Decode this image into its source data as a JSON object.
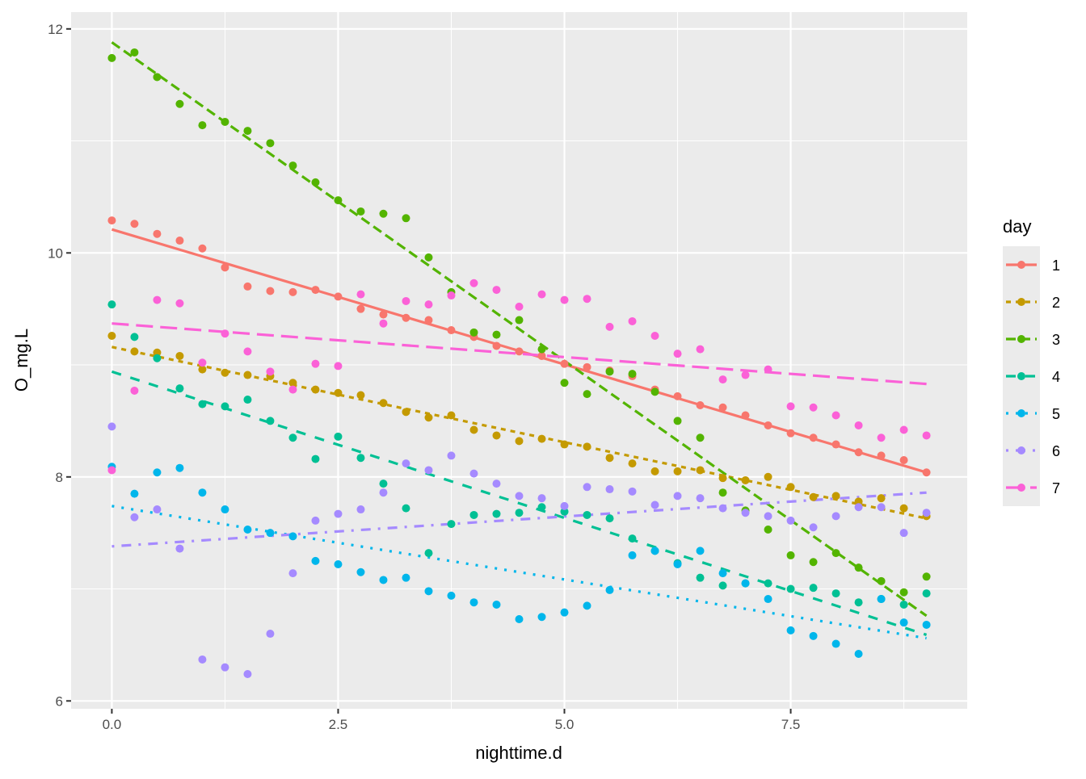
{
  "chart_data": {
    "type": "scatter",
    "xlabel": "nighttime.d",
    "ylabel": "O_mg.L",
    "xlim": [
      -0.45,
      9.45
    ],
    "ylim": [
      5.93,
      12.15
    ],
    "xticks": [
      0,
      2.5,
      5,
      7.5
    ],
    "xtick_labels": [
      "0.0",
      "2.5",
      "5.0",
      "7.5"
    ],
    "yticks": [
      6,
      8,
      10,
      12
    ],
    "ytick_labels": [
      "6",
      "8",
      "10",
      "12"
    ],
    "grid": true,
    "legend": {
      "title": "day",
      "position": "right"
    },
    "x": [
      0,
      0.25,
      0.5,
      0.75,
      1,
      1.25,
      1.5,
      1.75,
      2,
      2.25,
      2.5,
      2.75,
      3,
      3.25,
      3.5,
      3.75,
      4,
      4.25,
      4.5,
      4.75,
      5,
      5.25,
      5.5,
      5.75,
      6,
      6.25,
      6.5,
      6.75,
      7,
      7.25,
      7.5,
      7.75,
      8,
      8.25,
      8.5,
      8.75,
      9
    ],
    "series": [
      {
        "name": "1",
        "color": "#F8766D",
        "linetype": "solid",
        "fit": [
          10.21,
          8.04
        ],
        "values": [
          10.29,
          10.26,
          10.17,
          10.11,
          10.04,
          9.87,
          9.7,
          9.66,
          9.65,
          9.67,
          9.61,
          9.5,
          9.45,
          9.42,
          9.4,
          9.31,
          9.25,
          9.17,
          9.12,
          9.08,
          9.01,
          8.98,
          8.95,
          8.9,
          8.78,
          8.72,
          8.64,
          8.62,
          8.55,
          8.46,
          8.39,
          8.35,
          8.29,
          8.22,
          8.19,
          8.15,
          8.04
        ]
      },
      {
        "name": "2",
        "color": "#C49A00",
        "linetype": "22",
        "fit": [
          9.16,
          7.63
        ],
        "values": [
          9.26,
          9.12,
          9.11,
          9.08,
          8.96,
          8.93,
          8.91,
          8.9,
          8.84,
          8.78,
          8.75,
          8.73,
          8.66,
          8.58,
          8.53,
          8.55,
          8.42,
          8.37,
          8.32,
          8.34,
          8.29,
          8.27,
          8.17,
          8.12,
          8.05,
          8.05,
          8.06,
          7.99,
          7.97,
          8.0,
          7.91,
          7.82,
          7.83,
          7.78,
          7.81,
          7.72,
          7.65
        ]
      },
      {
        "name": "3",
        "color": "#53B400",
        "linetype": "42",
        "fit": [
          11.88,
          6.76
        ],
        "values": [
          11.74,
          11.79,
          11.57,
          11.33,
          11.14,
          11.17,
          11.09,
          10.98,
          10.78,
          10.63,
          10.47,
          10.37,
          10.35,
          10.31,
          9.96,
          9.65,
          9.29,
          9.27,
          9.4,
          9.14,
          8.84,
          8.74,
          8.94,
          8.92,
          8.76,
          8.5,
          8.35,
          7.86,
          7.7,
          7.53,
          7.3,
          7.24,
          7.32,
          7.19,
          7.07,
          6.97,
          7.11
        ]
      },
      {
        "name": "4",
        "color": "#00C094",
        "linetype": "44",
        "fit": [
          8.94,
          6.59
        ],
        "values": [
          9.54,
          9.25,
          9.06,
          8.79,
          8.65,
          8.63,
          8.69,
          8.5,
          8.35,
          8.16,
          8.36,
          8.17,
          7.94,
          7.72,
          7.32,
          7.58,
          7.66,
          7.67,
          7.68,
          7.73,
          7.69,
          7.66,
          7.63,
          7.45,
          7.34,
          7.23,
          7.1,
          7.03,
          7.05,
          7.05,
          7.0,
          7.01,
          6.96,
          6.88,
          6.91,
          6.86,
          6.96
        ]
      },
      {
        "name": "5",
        "color": "#00B6EB",
        "linetype": "13",
        "fit": [
          7.74,
          6.56
        ],
        "values": [
          8.09,
          7.85,
          8.04,
          8.08,
          7.86,
          7.71,
          7.53,
          7.5,
          7.47,
          7.25,
          7.22,
          7.15,
          7.08,
          7.1,
          6.98,
          6.94,
          6.88,
          6.86,
          6.73,
          6.75,
          6.79,
          6.85,
          6.99,
          7.3,
          7.34,
          7.22,
          7.34,
          7.14,
          7.05,
          6.91,
          6.63,
          6.58,
          6.51,
          6.42,
          6.91,
          6.7,
          6.68
        ]
      },
      {
        "name": "6",
        "color": "#A58AFF",
        "linetype": "1343",
        "fit": [
          7.38,
          7.86
        ],
        "values": [
          8.45,
          7.64,
          7.71,
          7.36,
          6.37,
          6.3,
          6.24,
          6.6,
          7.14,
          7.61,
          7.67,
          7.71,
          7.86,
          8.12,
          8.06,
          8.19,
          8.03,
          7.94,
          7.83,
          7.81,
          7.74,
          7.91,
          7.89,
          7.87,
          7.75,
          7.83,
          7.81,
          7.72,
          7.68,
          7.65,
          7.61,
          7.55,
          7.65,
          7.73,
          7.73,
          7.5,
          7.68
        ]
      },
      {
        "name": "7",
        "color": "#FB61D7",
        "linetype": "73",
        "fit": [
          9.37,
          8.83
        ],
        "values": [
          8.06,
          8.77,
          9.58,
          9.55,
          9.02,
          9.28,
          9.12,
          8.94,
          8.78,
          9.01,
          8.99,
          9.63,
          9.37,
          9.57,
          9.54,
          9.62,
          9.73,
          9.67,
          9.52,
          9.63,
          9.58,
          9.59,
          9.34,
          9.39,
          9.26,
          9.1,
          9.14,
          8.87,
          8.91,
          8.96,
          8.63,
          8.62,
          8.55,
          8.46,
          8.35,
          8.42,
          8.37
        ]
      }
    ]
  }
}
